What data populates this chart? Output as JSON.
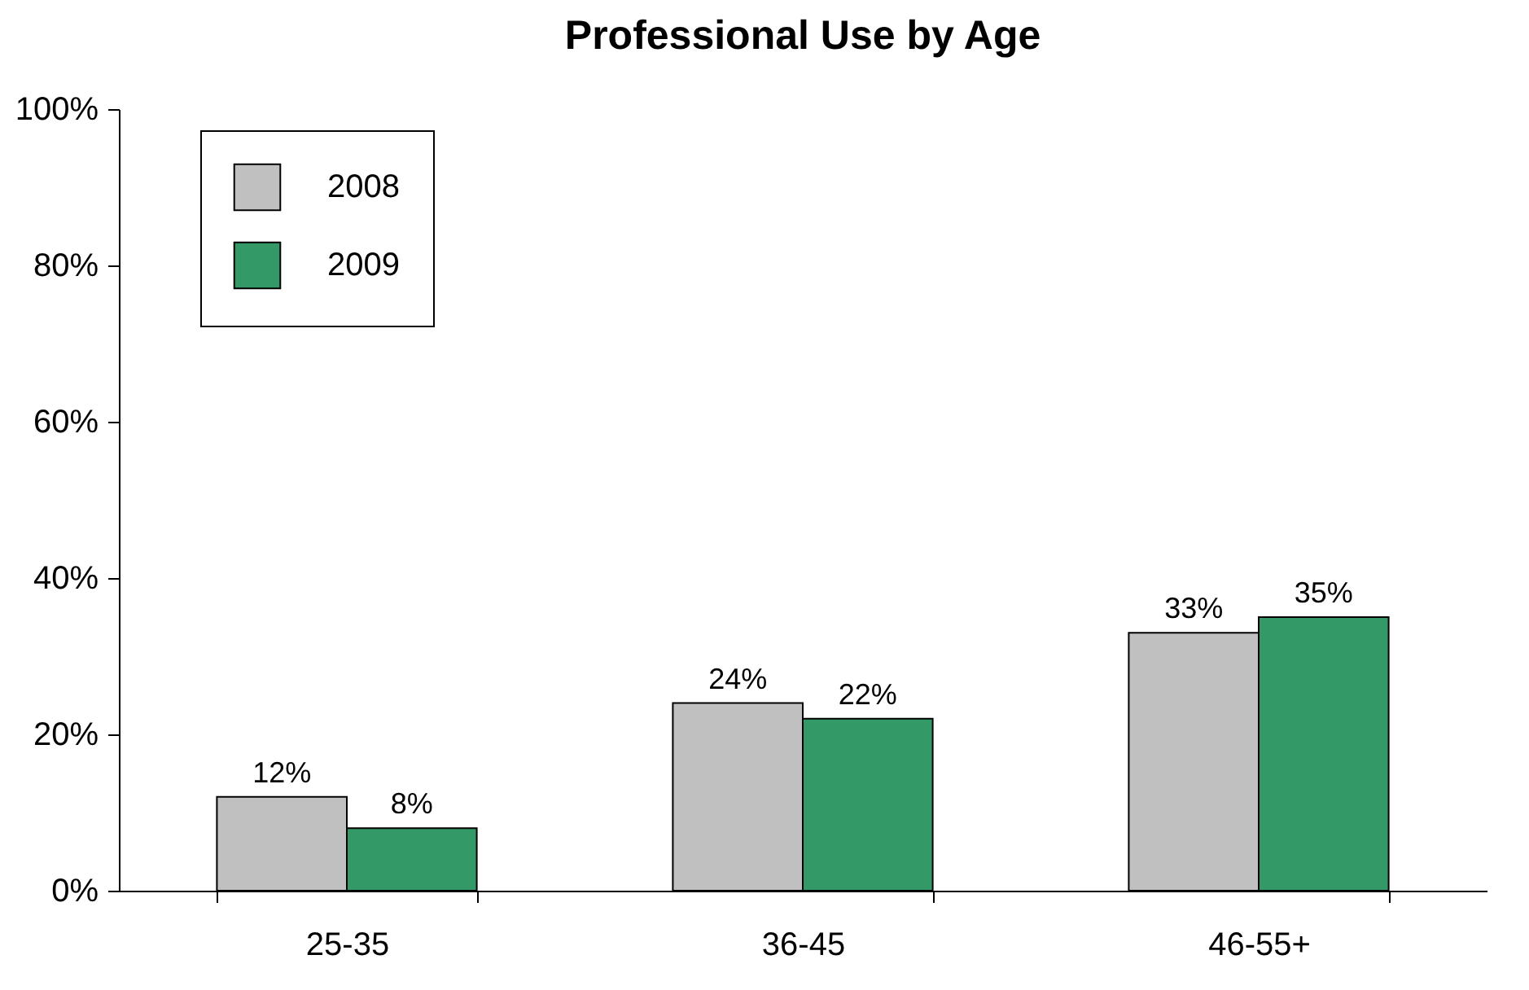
{
  "chart_data": {
    "type": "bar",
    "title": "Professional Use by Age",
    "categories": [
      "25-35",
      "36-45",
      "46-55+"
    ],
    "series": [
      {
        "name": "2008",
        "color": "#c0c0c0",
        "values": [
          12,
          24,
          33
        ],
        "value_labels": [
          "12%",
          "24%",
          "33%"
        ]
      },
      {
        "name": "2009",
        "color": "#339966",
        "values": [
          8,
          22,
          35
        ],
        "value_labels": [
          "8%",
          "22%",
          "35%"
        ]
      }
    ],
    "ylim": [
      0,
      100
    ],
    "yticks": [
      {
        "value": 0,
        "label": "0%"
      },
      {
        "value": 20,
        "label": "20%"
      },
      {
        "value": 40,
        "label": "40%"
      },
      {
        "value": 60,
        "label": "60%"
      },
      {
        "value": 80,
        "label": "80%"
      },
      {
        "value": 100,
        "label": "100%"
      }
    ],
    "grid": false,
    "legend": "top left"
  }
}
